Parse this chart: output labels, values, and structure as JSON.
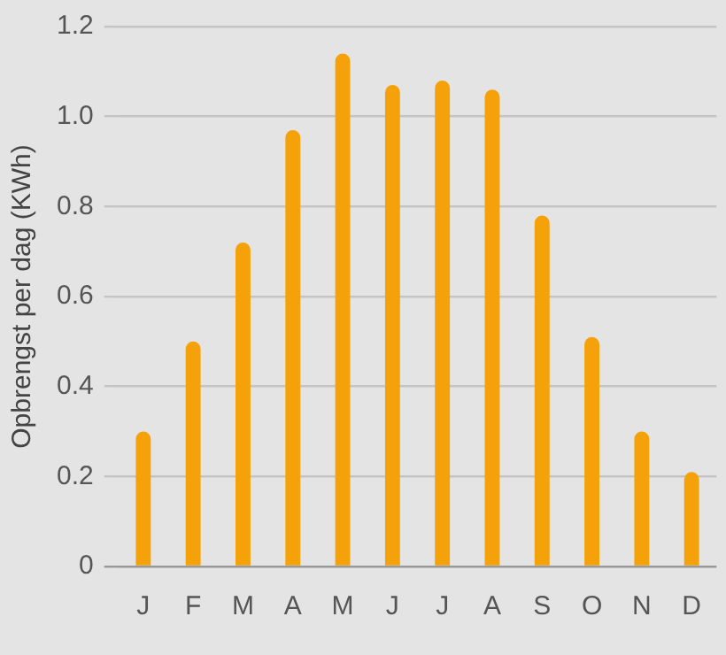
{
  "chart_data": {
    "type": "bar",
    "ylabel": "Opbrengst per dag (KWh)",
    "categories": [
      "J",
      "F",
      "M",
      "A",
      "M",
      "J",
      "J",
      "A",
      "S",
      "O",
      "N",
      "D"
    ],
    "values": [
      0.3,
      0.5,
      0.72,
      0.97,
      1.14,
      1.07,
      1.08,
      1.06,
      0.78,
      0.51,
      0.3,
      0.21
    ],
    "color": "#f5a20a",
    "ylim": [
      0,
      1.2
    ],
    "yticks": [
      0,
      {
        "value": 0.2,
        "label": "0.2"
      },
      {
        "value": 0.4,
        "label": "0.4"
      },
      {
        "value": 0.6,
        "label": "0.6"
      },
      {
        "value": 0.8,
        "label": "0.8"
      },
      {
        "value": 1,
        "label": "1.0"
      },
      {
        "value": 1.2,
        "label": "1.2"
      }
    ],
    "grid": "y"
  }
}
